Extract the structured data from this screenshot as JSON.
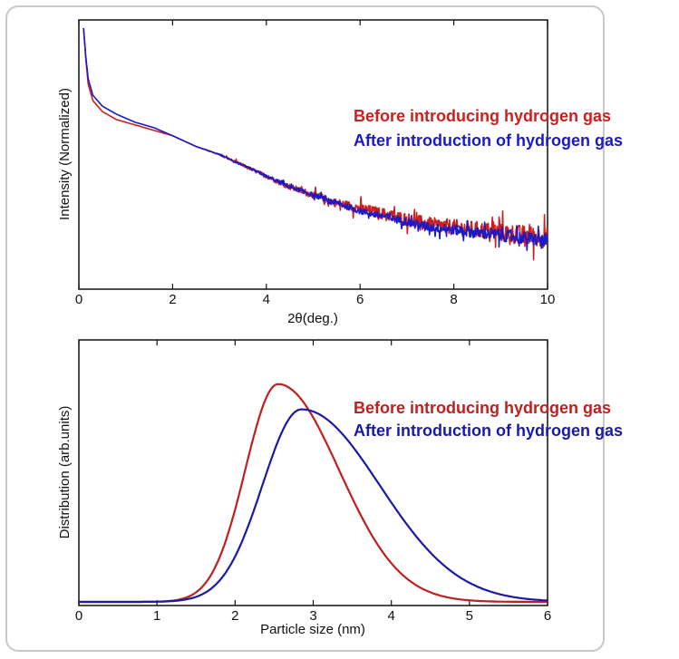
{
  "chart_data": [
    {
      "type": "line",
      "title": "",
      "xlabel": "2θ(deg.)",
      "ylabel": "Intensity (Normalized)",
      "xlim": [
        0,
        10
      ],
      "xticks": [
        "0",
        "2",
        "4",
        "6",
        "8",
        "10"
      ],
      "ylim": [
        0,
        1
      ],
      "yticks_shown": false,
      "grid": false,
      "legend_placement": "right",
      "series": [
        {
          "name": "Before introducing hydrogen gas",
          "color": "#cc1f1f",
          "noise": 0.04,
          "points": [
            [
              0.1,
              0.97
            ],
            [
              0.15,
              0.85
            ],
            [
              0.2,
              0.76
            ],
            [
              0.3,
              0.7
            ],
            [
              0.5,
              0.66
            ],
            [
              0.8,
              0.63
            ],
            [
              1.2,
              0.61
            ],
            [
              1.6,
              0.59
            ],
            [
              2,
              0.57
            ],
            [
              2.5,
              0.53
            ],
            [
              3,
              0.5
            ],
            [
              3.5,
              0.46
            ],
            [
              4,
              0.42
            ],
            [
              4.5,
              0.38
            ],
            [
              5,
              0.35
            ],
            [
              5.5,
              0.32
            ],
            [
              6,
              0.3
            ],
            [
              6.5,
              0.28
            ],
            [
              7,
              0.26
            ],
            [
              7.5,
              0.24
            ],
            [
              8,
              0.23
            ],
            [
              8.5,
              0.22
            ],
            [
              9,
              0.21
            ],
            [
              9.5,
              0.2
            ],
            [
              10,
              0.19
            ]
          ]
        },
        {
          "name": "After introduction of hydrogen gas",
          "color": "#1a1ac8",
          "noise": 0.025,
          "points": [
            [
              0.1,
              0.97
            ],
            [
              0.15,
              0.86
            ],
            [
              0.2,
              0.78
            ],
            [
              0.3,
              0.72
            ],
            [
              0.5,
              0.68
            ],
            [
              0.8,
              0.65
            ],
            [
              1.2,
              0.62
            ],
            [
              1.6,
              0.6
            ],
            [
              2,
              0.57
            ],
            [
              2.5,
              0.53
            ],
            [
              3,
              0.5
            ],
            [
              3.5,
              0.46
            ],
            [
              4,
              0.42
            ],
            [
              4.5,
              0.38
            ],
            [
              5,
              0.35
            ],
            [
              5.5,
              0.32
            ],
            [
              6,
              0.29
            ],
            [
              6.5,
              0.27
            ],
            [
              7,
              0.25
            ],
            [
              7.5,
              0.23
            ],
            [
              8,
              0.22
            ],
            [
              8.5,
              0.21
            ],
            [
              9,
              0.2
            ],
            [
              9.5,
              0.19
            ],
            [
              10,
              0.18
            ]
          ]
        }
      ]
    },
    {
      "type": "line",
      "title": "",
      "xlabel": "Particle size (nm)",
      "ylabel": "Distribution (arb.units)",
      "xlim": [
        0,
        6
      ],
      "xticks": [
        "0",
        "1",
        "2",
        "3",
        "4",
        "5",
        "6"
      ],
      "ylim": [
        0,
        1
      ],
      "yticks_shown": false,
      "grid": false,
      "legend_placement": "right",
      "series": [
        {
          "name": "Before introducing hydrogen gas",
          "color": "#c01f1f",
          "peak_x": 2.55,
          "peak_y": 0.82,
          "width_left": 0.42,
          "width_right": 0.78
        },
        {
          "name": "After introduction of hydrogen gas",
          "color": "#1a1aa8",
          "peak_x": 2.85,
          "peak_y": 0.725,
          "width_left": 0.5,
          "width_right": 1.0
        }
      ]
    }
  ]
}
